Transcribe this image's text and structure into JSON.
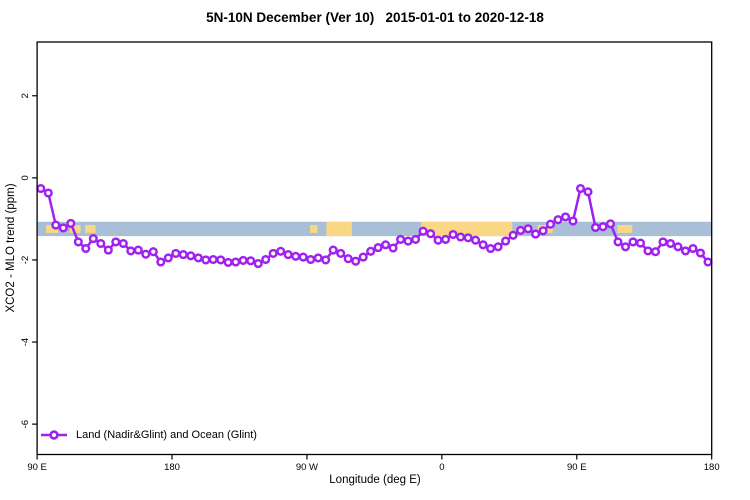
{
  "chart_data": {
    "type": "line",
    "title": "5N-10N December (Ver 10)   2015-01-01 to 2020-12-18",
    "xlabel": "Longitude (deg E)",
    "ylabel": "XCO2 - MLO trend (ppm)",
    "xlim": [
      90,
      540
    ],
    "ylim": [
      -6.74,
      3.31
    ],
    "grid": "off",
    "x_ticks": [
      {
        "lon": 90,
        "label": "90 E"
      },
      {
        "lon": 180,
        "label": "180"
      },
      {
        "lon": 270,
        "label": "90 W"
      },
      {
        "lon": 360,
        "label": "0"
      },
      {
        "lon": 450,
        "label": "90 E"
      },
      {
        "lon": 540,
        "label": "180"
      }
    ],
    "y_ticks": [
      {
        "v": 2,
        "label": "2"
      },
      {
        "v": 0,
        "label": "0"
      },
      {
        "v": -2,
        "label": "-2"
      },
      {
        "v": -4,
        "label": "-4"
      },
      {
        "v": -6,
        "label": "-6"
      }
    ],
    "legend": {
      "position": "bottom-left",
      "entries": [
        {
          "label": "Land (Nadir&Glint) and Ocean (Glint)",
          "color": "#A020F0",
          "marker": "open-circle"
        }
      ]
    },
    "reference_band": {
      "y_top": -1.07,
      "y_bottom": -1.42,
      "ocean_color": "#A9BFD8",
      "land_color": "#FAD784",
      "land_segments": [
        {
          "from": 96,
          "to": 104,
          "partial": true
        },
        {
          "from": 112,
          "to": 119,
          "partial": true
        },
        {
          "from": 122,
          "to": 129,
          "partial": true
        },
        {
          "from": 272,
          "to": 277,
          "partial": true
        },
        {
          "from": 283,
          "to": 300,
          "partial": false
        },
        {
          "from": 346,
          "to": 407,
          "partial": false
        },
        {
          "from": 424,
          "to": 434,
          "partial": true
        },
        {
          "from": 477,
          "to": 487,
          "partial": true
        }
      ]
    },
    "series": [
      {
        "name": "Land (Nadir&Glint) and Ocean (Glint)",
        "color": "#A020F0",
        "marker": "open-circle",
        "x": [
          92.5,
          97.5,
          102.5,
          107.5,
          112.5,
          117.5,
          122.5,
          127.5,
          132.5,
          137.5,
          142.5,
          147.5,
          152.5,
          157.5,
          162.5,
          167.5,
          172.5,
          177.5,
          182.5,
          187.5,
          192.5,
          197.5,
          202.5,
          207.5,
          212.5,
          217.5,
          222.5,
          227.5,
          232.5,
          237.5,
          242.5,
          247.5,
          252.5,
          257.5,
          262.5,
          267.5,
          272.5,
          277.5,
          282.5,
          287.5,
          292.5,
          297.5,
          302.5,
          307.5,
          312.5,
          317.5,
          322.5,
          327.5,
          332.5,
          337.5,
          342.5,
          347.5,
          352.5,
          357.5,
          362.5,
          367.5,
          372.5,
          377.5,
          382.5,
          387.5,
          392.5,
          397.5,
          402.5,
          407.5,
          412.5,
          417.5,
          422.5,
          427.5,
          432.5,
          437.5,
          442.5,
          447.5,
          452.5,
          457.5,
          462.5,
          467.5,
          472.5,
          477.5,
          482.5,
          487.5,
          492.5,
          497.5,
          502.5,
          507.5,
          512.5,
          517.5,
          522.5,
          527.5,
          532.5,
          537.5
        ],
        "y": [
          -0.26,
          -0.37,
          -1.15,
          -1.22,
          -1.11,
          -1.56,
          -1.72,
          -1.48,
          -1.6,
          -1.76,
          -1.56,
          -1.6,
          -1.78,
          -1.76,
          -1.86,
          -1.8,
          -2.05,
          -1.95,
          -1.84,
          -1.87,
          -1.9,
          -1.95,
          -2.0,
          -1.99,
          -2.0,
          -2.06,
          -2.05,
          -2.01,
          -2.02,
          -2.09,
          -1.99,
          -1.84,
          -1.79,
          -1.87,
          -1.91,
          -1.93,
          -1.99,
          -1.95,
          -2.0,
          -1.76,
          -1.84,
          -1.97,
          -2.03,
          -1.93,
          -1.79,
          -1.7,
          -1.63,
          -1.71,
          -1.5,
          -1.54,
          -1.5,
          -1.3,
          -1.36,
          -1.52,
          -1.5,
          -1.38,
          -1.44,
          -1.46,
          -1.52,
          -1.63,
          -1.72,
          -1.68,
          -1.54,
          -1.4,
          -1.28,
          -1.24,
          -1.37,
          -1.29,
          -1.13,
          -1.02,
          -0.95,
          -1.05,
          -0.26,
          -0.34,
          -1.21,
          -1.19,
          -1.12,
          -1.56,
          -1.68,
          -1.56,
          -1.59,
          -1.78,
          -1.8,
          -1.56,
          -1.6,
          -1.68,
          -1.78,
          -1.72,
          -1.83,
          -2.05
        ]
      }
    ]
  }
}
